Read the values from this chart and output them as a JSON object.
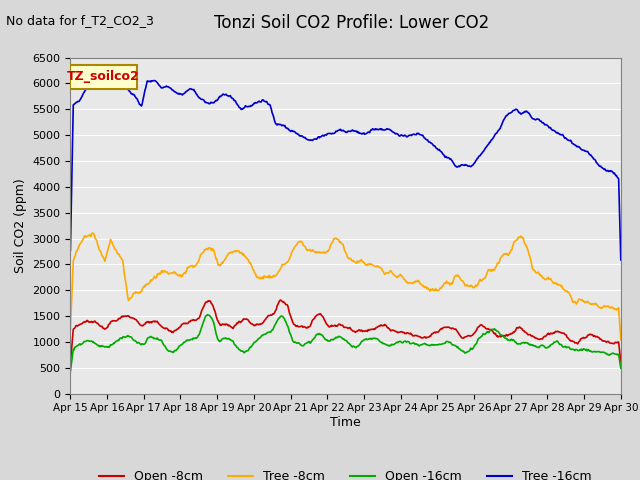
{
  "title": "Tonzi Soil CO2 Profile: Lower CO2",
  "no_data_label": "No data for f_T2_CO2_3",
  "box_label": "TZ_soilco2",
  "xlabel": "Time",
  "ylabel": "Soil CO2 (ppm)",
  "ylim": [
    0,
    6500
  ],
  "yticks": [
    0,
    500,
    1000,
    1500,
    2000,
    2500,
    3000,
    3500,
    4000,
    4500,
    5000,
    5500,
    6000,
    6500
  ],
  "x_labels": [
    "Apr 15",
    "Apr 16",
    "Apr 17",
    "Apr 18",
    "Apr 19",
    "Apr 20",
    "Apr 21",
    "Apr 22",
    "Apr 23",
    "Apr 24",
    "Apr 25",
    "Apr 26",
    "Apr 27",
    "Apr 28",
    "Apr 29",
    "Apr 30"
  ],
  "legend_entries": [
    {
      "label": "Open -8cm",
      "color": "#cc0000"
    },
    {
      "label": "Tree -8cm",
      "color": "#ffaa00"
    },
    {
      "label": "Open -16cm",
      "color": "#00aa00"
    },
    {
      "label": "Tree -16cm",
      "color": "#0000cc"
    }
  ],
  "background_color": "#d8d8d8",
  "plot_bg_color": "#e8e8e8"
}
